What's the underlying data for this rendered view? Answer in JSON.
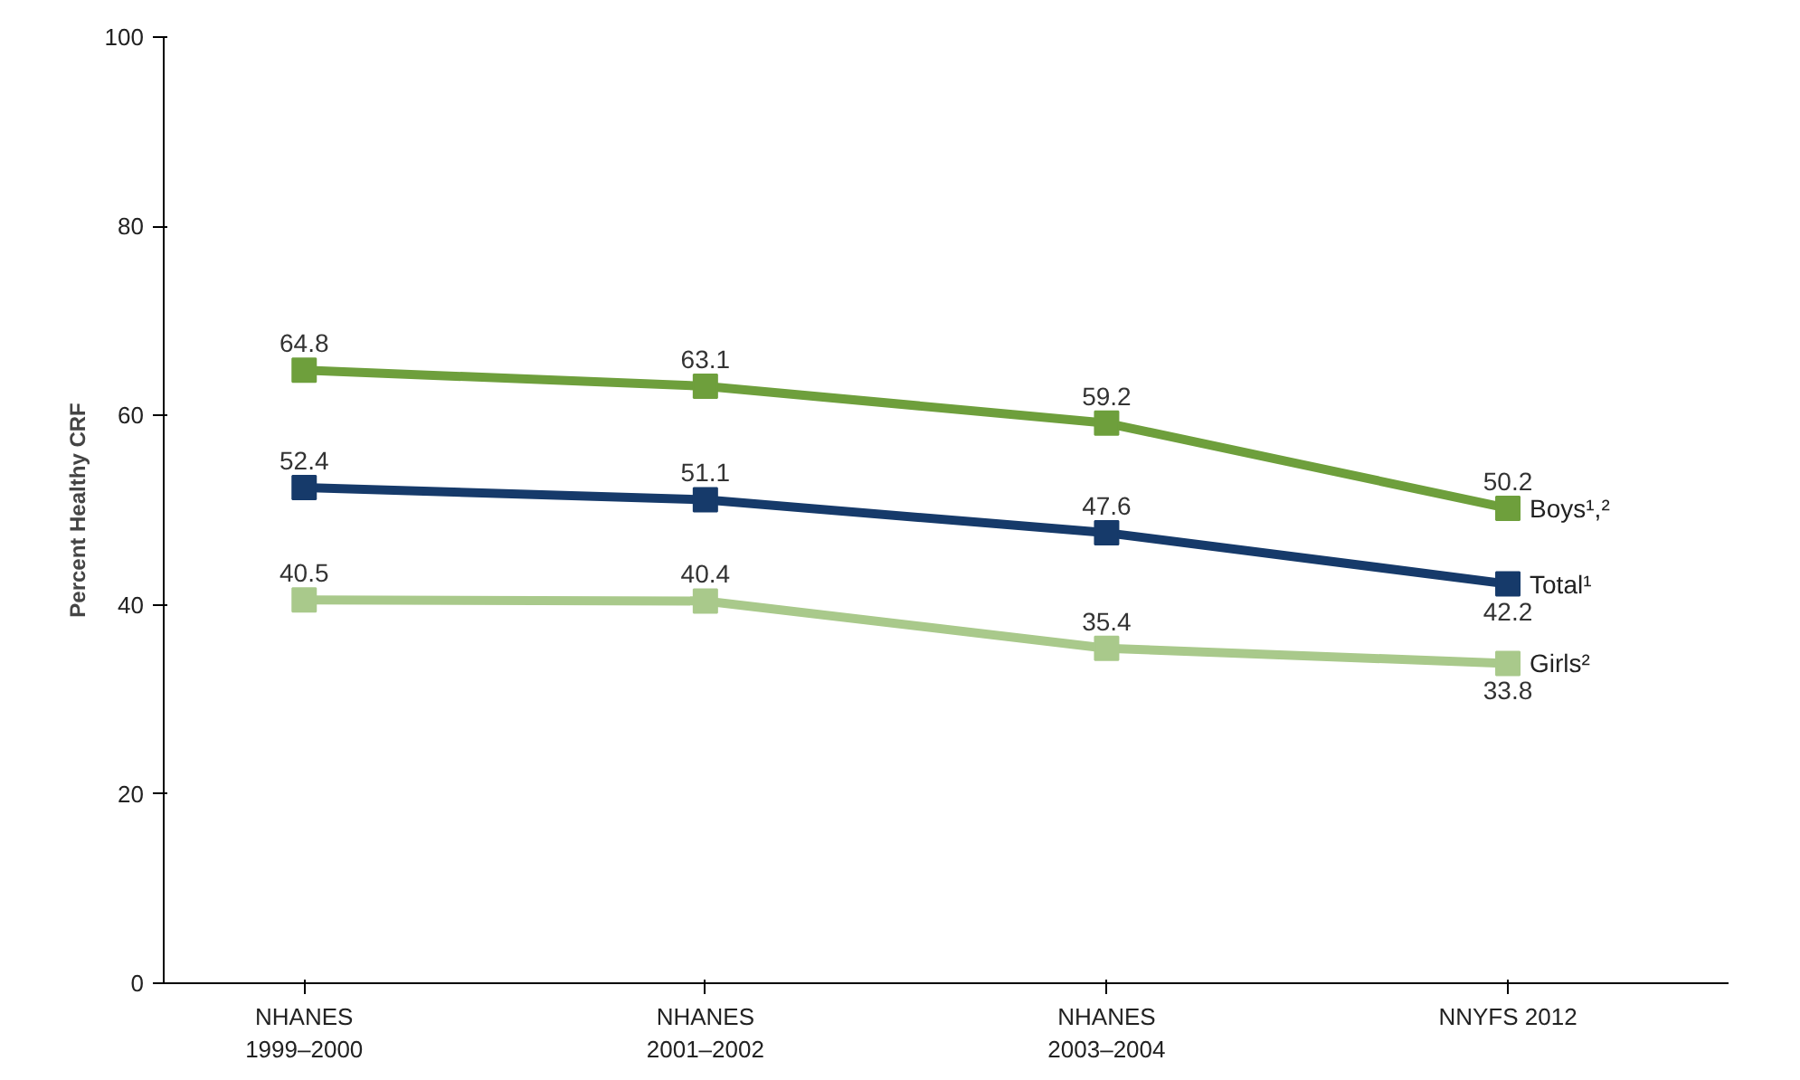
{
  "chart_data": {
    "type": "line",
    "ylabel": "Percent Healthy CRF",
    "categories": [
      "NHANES\n1999–2000",
      "NHANES\n2001–2002",
      "NHANES\n2003–2004",
      "NNYFS 2012"
    ],
    "series": [
      {
        "name": "Boys¹,²",
        "color": "#6e9f3c",
        "values": [
          64.8,
          63.1,
          59.2,
          50.2
        ]
      },
      {
        "name": "Total¹",
        "color": "#163a6a",
        "values": [
          52.4,
          51.1,
          47.6,
          42.2
        ]
      },
      {
        "name": "Girls²",
        "color": "#a9c98b",
        "values": [
          40.5,
          40.4,
          35.4,
          33.8
        ]
      }
    ],
    "ylim": [
      0,
      100
    ],
    "yticks": [
      0,
      20,
      40,
      60,
      80,
      100
    ],
    "marker": "square",
    "data_labels": true,
    "legend": false,
    "grid": false
  }
}
